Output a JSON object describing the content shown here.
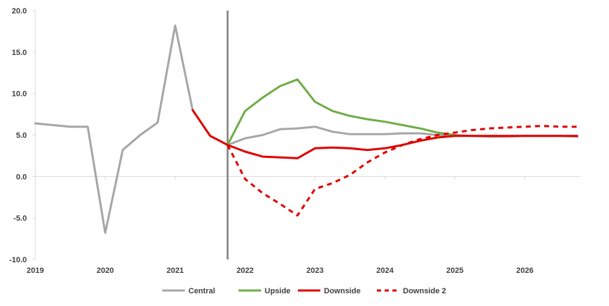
{
  "chart_data": {
    "type": "line",
    "title": "",
    "xlabel": "",
    "ylabel": "",
    "xlim": [
      2019,
      2026.8
    ],
    "ylim": [
      -10,
      20
    ],
    "y_ticks": [
      20,
      15,
      10,
      5,
      0,
      -5,
      -10
    ],
    "y_tick_labels": [
      "20.0",
      "15.0",
      "10.0",
      "5.0",
      "0.0",
      "-5.0",
      "-10.0"
    ],
    "x_ticks": [
      2019,
      2020,
      2021,
      2022,
      2023,
      2024,
      2025,
      2026
    ],
    "x_tick_labels": [
      "2019",
      "2020",
      "2021",
      "2022",
      "2023",
      "2024",
      "2025",
      "2026"
    ],
    "forecast_marker_x": 2021.75,
    "grid": false,
    "legend_position": "bottom",
    "series": [
      {
        "name": "Central",
        "color": "#a6a6a6",
        "dash": "solid",
        "points": [
          [
            2019.0,
            6.4
          ],
          [
            2019.25,
            6.2
          ],
          [
            2019.5,
            6.0
          ],
          [
            2019.75,
            6.0
          ],
          [
            2020.0,
            -6.8
          ],
          [
            2020.25,
            3.2
          ],
          [
            2020.5,
            5.0
          ],
          [
            2020.75,
            6.5
          ],
          [
            2021.0,
            18.2
          ],
          [
            2021.25,
            8.0
          ],
          [
            2021.5,
            4.9
          ],
          [
            2021.75,
            3.8
          ],
          [
            2022.0,
            4.6
          ],
          [
            2022.25,
            5.0
          ],
          [
            2022.5,
            5.7
          ],
          [
            2022.75,
            5.8
          ],
          [
            2023.0,
            6.0
          ],
          [
            2023.25,
            5.4
          ],
          [
            2023.5,
            5.1
          ],
          [
            2023.75,
            5.1
          ],
          [
            2024.0,
            5.1
          ],
          [
            2024.25,
            5.2
          ],
          [
            2024.5,
            5.2
          ],
          [
            2024.75,
            5.0
          ],
          [
            2025.0,
            5.0
          ],
          [
            2025.25,
            4.9
          ],
          [
            2025.5,
            4.8
          ],
          [
            2025.75,
            4.8
          ],
          [
            2026.0,
            4.9
          ],
          [
            2026.25,
            4.9
          ],
          [
            2026.5,
            4.9
          ],
          [
            2026.75,
            4.8
          ]
        ]
      },
      {
        "name": "Upside",
        "color": "#70ad47",
        "dash": "solid",
        "points": [
          [
            2021.75,
            3.8
          ],
          [
            2022.0,
            7.9
          ],
          [
            2022.25,
            9.5
          ],
          [
            2022.5,
            10.9
          ],
          [
            2022.75,
            11.7
          ],
          [
            2023.0,
            9.0
          ],
          [
            2023.25,
            7.9
          ],
          [
            2023.5,
            7.3
          ],
          [
            2023.75,
            6.9
          ],
          [
            2024.0,
            6.6
          ],
          [
            2024.25,
            6.2
          ],
          [
            2024.5,
            5.8
          ],
          [
            2024.75,
            5.3
          ],
          [
            2025.0,
            5.0
          ]
        ]
      },
      {
        "name": "Downside",
        "color": "#e00000",
        "dash": "solid",
        "points": [
          [
            2021.25,
            8.0
          ],
          [
            2021.5,
            4.9
          ],
          [
            2021.75,
            3.8
          ],
          [
            2022.0,
            3.0
          ],
          [
            2022.25,
            2.4
          ],
          [
            2022.5,
            2.3
          ],
          [
            2022.75,
            2.2
          ],
          [
            2023.0,
            3.4
          ],
          [
            2023.25,
            3.5
          ],
          [
            2023.5,
            3.4
          ],
          [
            2023.75,
            3.2
          ],
          [
            2024.0,
            3.4
          ],
          [
            2024.25,
            3.8
          ],
          [
            2024.5,
            4.3
          ],
          [
            2024.75,
            4.7
          ],
          [
            2025.0,
            4.9
          ],
          [
            2025.25,
            4.9
          ],
          [
            2025.5,
            4.9
          ],
          [
            2025.75,
            4.9
          ],
          [
            2026.0,
            4.9
          ],
          [
            2026.25,
            4.9
          ],
          [
            2026.5,
            4.9
          ],
          [
            2026.75,
            4.9
          ]
        ]
      },
      {
        "name": "Downside 2",
        "color": "#e00000",
        "dash": "dashed",
        "points": [
          [
            2021.75,
            3.8
          ],
          [
            2022.0,
            -0.3
          ],
          [
            2022.25,
            -2.0
          ],
          [
            2022.5,
            -3.3
          ],
          [
            2022.75,
            -4.7
          ],
          [
            2023.0,
            -1.5
          ],
          [
            2023.25,
            -0.8
          ],
          [
            2023.5,
            0.2
          ],
          [
            2023.75,
            1.7
          ],
          [
            2024.0,
            2.9
          ],
          [
            2024.25,
            3.8
          ],
          [
            2024.5,
            4.5
          ],
          [
            2024.75,
            5.0
          ],
          [
            2025.0,
            5.3
          ],
          [
            2025.25,
            5.6
          ],
          [
            2025.5,
            5.8
          ],
          [
            2025.75,
            5.9
          ],
          [
            2026.0,
            6.0
          ],
          [
            2026.25,
            6.1
          ],
          [
            2026.5,
            6.0
          ],
          [
            2026.75,
            6.0
          ]
        ]
      }
    ]
  }
}
